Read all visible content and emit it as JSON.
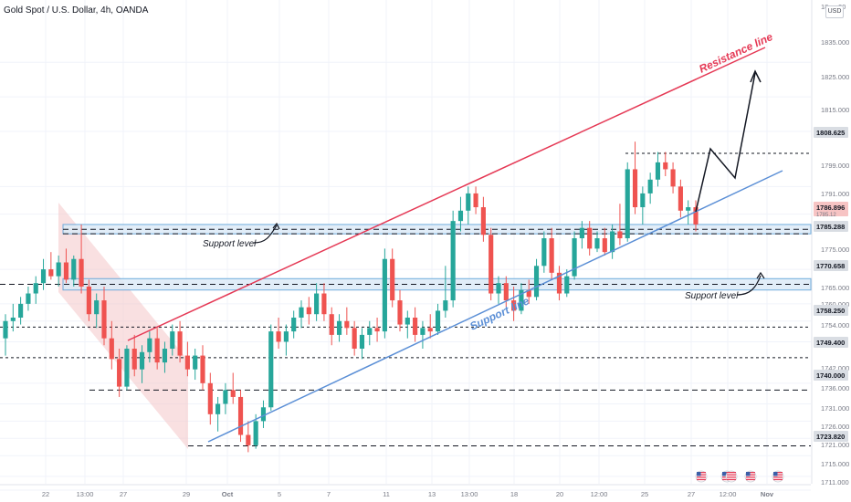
{
  "header": {
    "symbol": "Gold Spot / U.S. Dollar, 4h, OANDA",
    "currency": "USD"
  },
  "colors": {
    "up": "#26a69a",
    "down": "#ef5350",
    "resistance": "#e53955",
    "support": "#5b8fd6",
    "zone_fill": "#dcebf7",
    "zone_border": "#5aa0d8",
    "price_tag": "#d9dde3"
  },
  "annotations": {
    "resistance_label": "Resistance line",
    "support_line_label": "Support line",
    "support_level_left": "Support level",
    "support_level_right": "Support level"
  },
  "chart_data": {
    "type": "candlestick",
    "ylim": [
      1711.0,
      1852.0
    ],
    "y_ticks": [
      "1835.000",
      "1825.000",
      "1815.000",
      "1799.000",
      "1791.000",
      "1775.000",
      "1765.000",
      "1760.000",
      "1754.000",
      "1742.000",
      "1736.000",
      "1731.000",
      "1726.000",
      "1721.000",
      "1715.000",
      "1711.000"
    ],
    "price_tags": [
      "1808.625",
      "1785.288",
      "1770.658",
      "1758.250",
      "1749.400",
      "1740.000",
      "1723.820"
    ],
    "partial_tags": [
      "1786.896",
      "1785.12"
    ],
    "top_partial_tags": [
      "18",
      "00"
    ],
    "levels": [
      1808.625,
      1785.288,
      1770.658,
      1758.25,
      1749.4,
      1740.0,
      1723.82
    ],
    "support_zones": [
      [
        1785.288,
        1788.0
      ],
      [
        1769.0,
        1772.3
      ]
    ],
    "x_labels": [
      "22",
      "13:00",
      "27",
      "29",
      "Oct",
      "5",
      "7",
      "11",
      "13",
      "13:00",
      "18",
      "20",
      "12:00",
      "25",
      "27",
      "12:00",
      "Nov"
    ],
    "resistance_line": {
      "from": [
        "Sep 27",
        1751.0
      ],
      "to": [
        "Nov",
        1832.0
      ]
    },
    "support_line": {
      "from": [
        "Sep 29",
        1722.5
      ],
      "to": [
        "Nov",
        1796.0
      ]
    },
    "projection": [
      1788.0,
      1803.5,
      1797.5,
      1826.0
    ],
    "candles": [
      {
        "o": 1755.0,
        "h": 1762.0,
        "l": 1750.0,
        "c": 1760.0
      },
      {
        "o": 1760.0,
        "h": 1765.0,
        "l": 1757.0,
        "c": 1761.0
      },
      {
        "o": 1761.0,
        "h": 1767.0,
        "l": 1759.0,
        "c": 1765.0
      },
      {
        "o": 1765.0,
        "h": 1770.0,
        "l": 1763.0,
        "c": 1768.0
      },
      {
        "o": 1768.0,
        "h": 1773.0,
        "l": 1765.0,
        "c": 1771.0
      },
      {
        "o": 1771.0,
        "h": 1778.0,
        "l": 1769.0,
        "c": 1775.0
      },
      {
        "o": 1775.0,
        "h": 1780.0,
        "l": 1772.0,
        "c": 1773.0
      },
      {
        "o": 1773.0,
        "h": 1779.0,
        "l": 1770.0,
        "c": 1777.0
      },
      {
        "o": 1777.0,
        "h": 1781.0,
        "l": 1771.0,
        "c": 1772.0
      },
      {
        "o": 1772.0,
        "h": 1779.0,
        "l": 1770.0,
        "c": 1778.0
      },
      {
        "o": 1778.0,
        "h": 1788.0,
        "l": 1768.0,
        "c": 1770.0
      },
      {
        "o": 1770.0,
        "h": 1772.0,
        "l": 1760.0,
        "c": 1762.0
      },
      {
        "o": 1762.0,
        "h": 1768.0,
        "l": 1758.0,
        "c": 1766.0
      },
      {
        "o": 1766.0,
        "h": 1770.0,
        "l": 1753.0,
        "c": 1755.0
      },
      {
        "o": 1755.0,
        "h": 1760.0,
        "l": 1746.0,
        "c": 1749.0
      },
      {
        "o": 1749.0,
        "h": 1752.0,
        "l": 1738.0,
        "c": 1741.0
      },
      {
        "o": 1741.0,
        "h": 1753.0,
        "l": 1740.0,
        "c": 1752.0
      },
      {
        "o": 1752.0,
        "h": 1756.0,
        "l": 1744.0,
        "c": 1746.0
      },
      {
        "o": 1746.0,
        "h": 1753.0,
        "l": 1742.0,
        "c": 1751.0
      },
      {
        "o": 1751.0,
        "h": 1757.0,
        "l": 1748.0,
        "c": 1755.0
      },
      {
        "o": 1755.0,
        "h": 1758.0,
        "l": 1746.0,
        "c": 1748.0
      },
      {
        "o": 1748.0,
        "h": 1754.0,
        "l": 1745.0,
        "c": 1752.0
      },
      {
        "o": 1752.0,
        "h": 1759.0,
        "l": 1750.0,
        "c": 1757.0
      },
      {
        "o": 1757.0,
        "h": 1760.0,
        "l": 1748.0,
        "c": 1750.0
      },
      {
        "o": 1750.0,
        "h": 1754.0,
        "l": 1744.0,
        "c": 1746.0
      },
      {
        "o": 1746.0,
        "h": 1752.0,
        "l": 1743.0,
        "c": 1750.0
      },
      {
        "o": 1750.0,
        "h": 1753.0,
        "l": 1740.0,
        "c": 1742.0
      },
      {
        "o": 1742.0,
        "h": 1745.0,
        "l": 1730.0,
        "c": 1733.0
      },
      {
        "o": 1733.0,
        "h": 1738.0,
        "l": 1728.0,
        "c": 1736.0
      },
      {
        "o": 1736.0,
        "h": 1742.0,
        "l": 1733.0,
        "c": 1740.0
      },
      {
        "o": 1740.0,
        "h": 1745.0,
        "l": 1736.0,
        "c": 1738.0
      },
      {
        "o": 1738.0,
        "h": 1740.0,
        "l": 1725.0,
        "c": 1727.0
      },
      {
        "o": 1727.0,
        "h": 1731.0,
        "l": 1722.0,
        "c": 1724.0
      },
      {
        "o": 1724.0,
        "h": 1733.0,
        "l": 1723.0,
        "c": 1731.0
      },
      {
        "o": 1731.0,
        "h": 1737.0,
        "l": 1729.0,
        "c": 1735.0
      },
      {
        "o": 1735.0,
        "h": 1759.0,
        "l": 1734.0,
        "c": 1757.0
      },
      {
        "o": 1757.0,
        "h": 1761.0,
        "l": 1752.0,
        "c": 1754.0
      },
      {
        "o": 1754.0,
        "h": 1759.0,
        "l": 1750.0,
        "c": 1757.0
      },
      {
        "o": 1757.0,
        "h": 1763.0,
        "l": 1755.0,
        "c": 1761.0
      },
      {
        "o": 1761.0,
        "h": 1766.0,
        "l": 1758.0,
        "c": 1764.0
      },
      {
        "o": 1764.0,
        "h": 1767.0,
        "l": 1759.0,
        "c": 1762.0
      },
      {
        "o": 1762.0,
        "h": 1771.0,
        "l": 1760.0,
        "c": 1768.0
      },
      {
        "o": 1768.0,
        "h": 1771.0,
        "l": 1760.0,
        "c": 1762.0
      },
      {
        "o": 1762.0,
        "h": 1764.0,
        "l": 1753.0,
        "c": 1756.0
      },
      {
        "o": 1756.0,
        "h": 1762.0,
        "l": 1754.0,
        "c": 1760.0
      },
      {
        "o": 1760.0,
        "h": 1764.0,
        "l": 1756.0,
        "c": 1758.0
      },
      {
        "o": 1758.0,
        "h": 1760.0,
        "l": 1750.0,
        "c": 1752.0
      },
      {
        "o": 1752.0,
        "h": 1758.0,
        "l": 1749.0,
        "c": 1756.0
      },
      {
        "o": 1756.0,
        "h": 1760.0,
        "l": 1753.0,
        "c": 1758.0
      },
      {
        "o": 1758.0,
        "h": 1761.0,
        "l": 1754.0,
        "c": 1757.0
      },
      {
        "o": 1757.0,
        "h": 1781.0,
        "l": 1755.0,
        "c": 1778.0
      },
      {
        "o": 1778.0,
        "h": 1781.0,
        "l": 1764.0,
        "c": 1766.0
      },
      {
        "o": 1766.0,
        "h": 1769.0,
        "l": 1757.0,
        "c": 1759.0
      },
      {
        "o": 1759.0,
        "h": 1763.0,
        "l": 1755.0,
        "c": 1761.0
      },
      {
        "o": 1761.0,
        "h": 1764.0,
        "l": 1754.0,
        "c": 1756.0
      },
      {
        "o": 1756.0,
        "h": 1760.0,
        "l": 1752.0,
        "c": 1758.0
      },
      {
        "o": 1758.0,
        "h": 1762.0,
        "l": 1755.0,
        "c": 1757.0
      },
      {
        "o": 1757.0,
        "h": 1765.0,
        "l": 1756.0,
        "c": 1763.0
      },
      {
        "o": 1763.0,
        "h": 1776.0,
        "l": 1761.0,
        "c": 1766.0
      },
      {
        "o": 1766.0,
        "h": 1792.0,
        "l": 1764.0,
        "c": 1789.0
      },
      {
        "o": 1789.0,
        "h": 1796.0,
        "l": 1786.0,
        "c": 1792.0
      },
      {
        "o": 1792.0,
        "h": 1799.0,
        "l": 1788.0,
        "c": 1797.0
      },
      {
        "o": 1797.0,
        "h": 1799.0,
        "l": 1791.0,
        "c": 1793.0
      },
      {
        "o": 1793.0,
        "h": 1796.0,
        "l": 1783.0,
        "c": 1785.0
      },
      {
        "o": 1785.0,
        "h": 1787.0,
        "l": 1766.0,
        "c": 1768.0
      },
      {
        "o": 1768.0,
        "h": 1773.0,
        "l": 1765.0,
        "c": 1771.0
      },
      {
        "o": 1771.0,
        "h": 1773.0,
        "l": 1764.0,
        "c": 1766.0
      },
      {
        "o": 1766.0,
        "h": 1770.0,
        "l": 1760.0,
        "c": 1763.0
      },
      {
        "o": 1763.0,
        "h": 1771.0,
        "l": 1762.0,
        "c": 1769.0
      },
      {
        "o": 1769.0,
        "h": 1772.0,
        "l": 1765.0,
        "c": 1767.0
      },
      {
        "o": 1767.0,
        "h": 1778.0,
        "l": 1766.0,
        "c": 1776.0
      },
      {
        "o": 1776.0,
        "h": 1786.0,
        "l": 1774.0,
        "c": 1784.0
      },
      {
        "o": 1784.0,
        "h": 1787.0,
        "l": 1772.0,
        "c": 1774.0
      },
      {
        "o": 1774.0,
        "h": 1776.0,
        "l": 1766.0,
        "c": 1768.0
      },
      {
        "o": 1768.0,
        "h": 1775.0,
        "l": 1767.0,
        "c": 1773.0
      },
      {
        "o": 1773.0,
        "h": 1786.0,
        "l": 1772.0,
        "c": 1784.0
      },
      {
        "o": 1784.0,
        "h": 1789.0,
        "l": 1781.0,
        "c": 1787.0
      },
      {
        "o": 1787.0,
        "h": 1789.0,
        "l": 1779.0,
        "c": 1781.0
      },
      {
        "o": 1781.0,
        "h": 1786.0,
        "l": 1780.0,
        "c": 1784.0
      },
      {
        "o": 1784.0,
        "h": 1787.0,
        "l": 1779.0,
        "c": 1780.0
      },
      {
        "o": 1780.0,
        "h": 1788.0,
        "l": 1778.0,
        "c": 1786.0
      },
      {
        "o": 1786.0,
        "h": 1794.0,
        "l": 1782.0,
        "c": 1784.0
      },
      {
        "o": 1784.0,
        "h": 1806.0,
        "l": 1783.0,
        "c": 1804.0
      },
      {
        "o": 1804.0,
        "h": 1812.0,
        "l": 1791.0,
        "c": 1793.0
      },
      {
        "o": 1793.0,
        "h": 1799.0,
        "l": 1788.0,
        "c": 1797.0
      },
      {
        "o": 1797.0,
        "h": 1803.0,
        "l": 1794.0,
        "c": 1801.0
      },
      {
        "o": 1801.0,
        "h": 1809.0,
        "l": 1799.0,
        "c": 1806.0
      },
      {
        "o": 1806.0,
        "h": 1809.0,
        "l": 1802.0,
        "c": 1804.0
      },
      {
        "o": 1804.0,
        "h": 1806.0,
        "l": 1797.0,
        "c": 1799.0
      },
      {
        "o": 1799.0,
        "h": 1801.0,
        "l": 1790.0,
        "c": 1792.0
      },
      {
        "o": 1792.0,
        "h": 1795.0,
        "l": 1788.0,
        "c": 1793.0
      },
      {
        "o": 1793.0,
        "h": 1795.0,
        "l": 1786.0,
        "c": 1788.0
      }
    ]
  }
}
